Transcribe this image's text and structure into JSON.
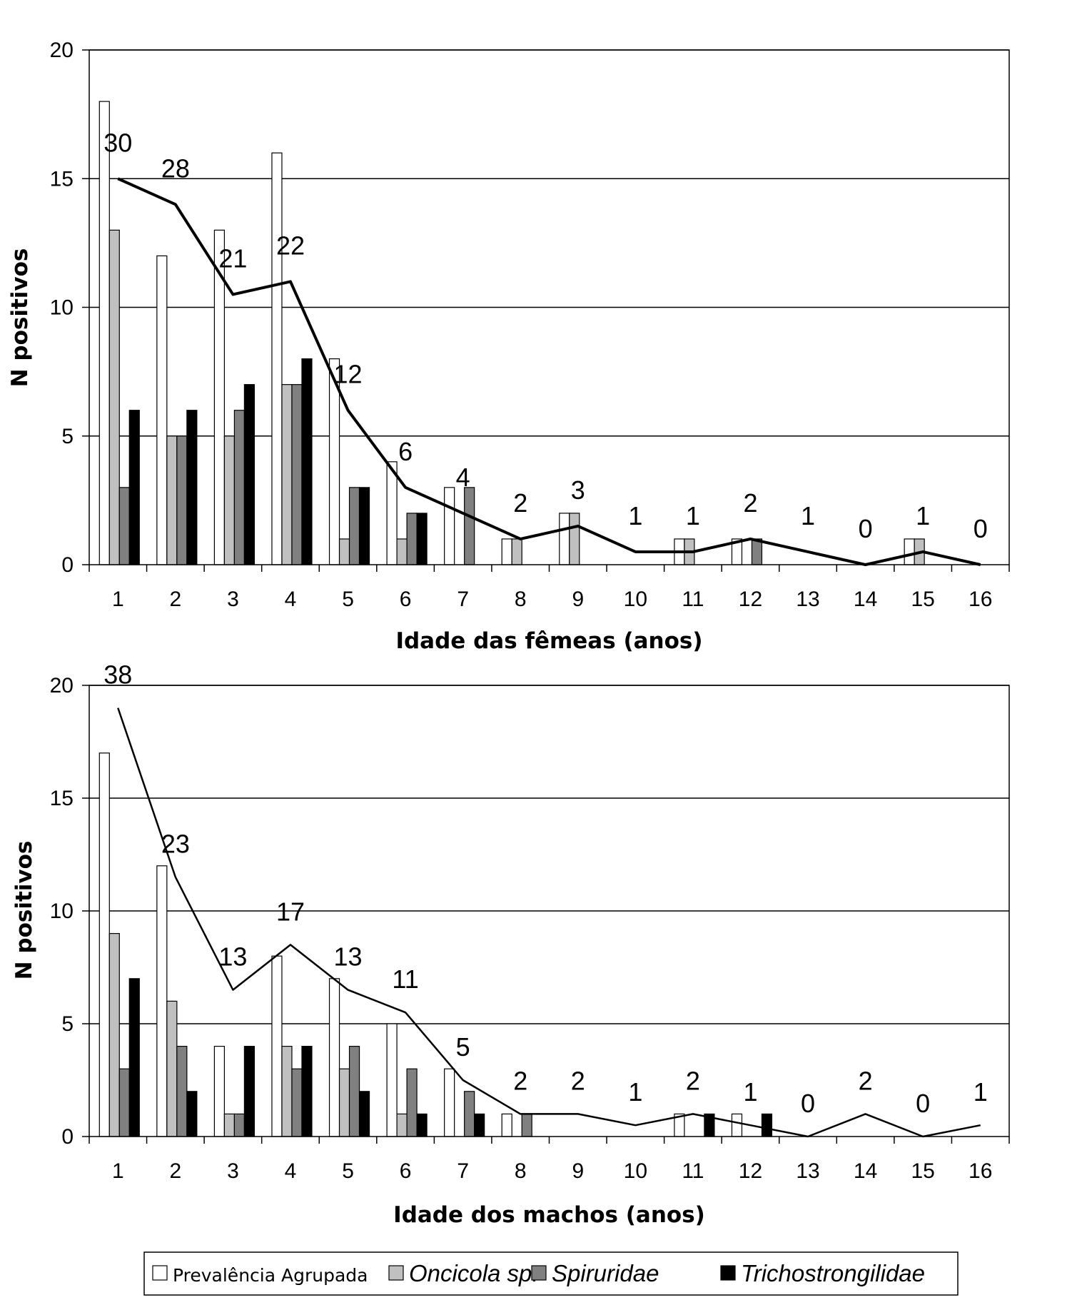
{
  "legend": {
    "items": [
      {
        "name": "Prevalência Agrupada",
        "color": "#ffffff",
        "italic": false
      },
      {
        "name": "Oncicola sp.",
        "color": "#c0c0c0",
        "italic": true
      },
      {
        "name": "Spiruridae",
        "color": "#808080",
        "italic": true
      },
      {
        "name": "Trichostrongilidae",
        "color": "#000000",
        "italic": true
      }
    ]
  },
  "chart_data": [
    {
      "type": "bar",
      "xlabel": "Idade das fêmeas (anos)",
      "ylabel": "N positivos",
      "ylim": [
        0,
        20
      ],
      "yticks": [
        0,
        5,
        10,
        15,
        20
      ],
      "grid": true,
      "categories": [
        "1",
        "2",
        "3",
        "4",
        "5",
        "6",
        "7",
        "8",
        "9",
        "10",
        "11",
        "12",
        "13",
        "14",
        "15",
        "16"
      ],
      "series": [
        {
          "name": "Prevalência Agrupada",
          "color": "#ffffff",
          "values": [
            18,
            12,
            13,
            16,
            8,
            4,
            3,
            1,
            2,
            0,
            1,
            1,
            0,
            0,
            1,
            0
          ]
        },
        {
          "name": "Oncicola sp.",
          "color": "#c0c0c0",
          "values": [
            13,
            5,
            5,
            7,
            1,
            1,
            0,
            1,
            2,
            0,
            1,
            0,
            0,
            0,
            1,
            0
          ]
        },
        {
          "name": "Spiruridae",
          "color": "#808080",
          "values": [
            3,
            5,
            6,
            7,
            3,
            2,
            3,
            0,
            0,
            0,
            0,
            1,
            0,
            0,
            0,
            0
          ]
        },
        {
          "name": "Trichostrongilidae",
          "color": "#000000",
          "values": [
            6,
            6,
            7,
            8,
            3,
            2,
            0,
            0,
            0,
            0,
            0,
            0,
            0,
            0,
            0,
            0
          ]
        }
      ],
      "line": {
        "values": [
          15,
          14,
          10.5,
          11,
          6,
          3,
          2,
          1,
          1.5,
          0.5,
          0.5,
          1,
          0.5,
          0,
          0.5,
          0
        ],
        "labels": [
          "30",
          "28",
          "21",
          "22",
          "12",
          "6",
          "4",
          "2",
          "3",
          "1",
          "1",
          "2",
          "1",
          "0",
          "1",
          "0"
        ]
      }
    },
    {
      "type": "bar",
      "xlabel": "Idade dos machos (anos)",
      "ylabel": "N positivos",
      "ylim": [
        0,
        20
      ],
      "yticks": [
        0,
        5,
        10,
        15,
        20
      ],
      "grid": true,
      "categories": [
        "1",
        "2",
        "3",
        "4",
        "5",
        "6",
        "7",
        "8",
        "9",
        "10",
        "11",
        "12",
        "13",
        "14",
        "15",
        "16"
      ],
      "series": [
        {
          "name": "Prevalência Agrupada",
          "color": "#ffffff",
          "values": [
            17,
            12,
            4,
            8,
            7,
            5,
            3,
            1,
            0,
            0,
            1,
            1,
            0,
            0,
            0,
            0
          ]
        },
        {
          "name": "Oncicola sp.",
          "color": "#c0c0c0",
          "values": [
            9,
            6,
            1,
            4,
            3,
            1,
            0,
            0,
            0,
            0,
            0,
            0,
            0,
            0,
            0,
            0
          ]
        },
        {
          "name": "Spiruridae",
          "color": "#808080",
          "values": [
            3,
            4,
            1,
            3,
            4,
            3,
            2,
            1,
            0,
            0,
            0,
            0,
            0,
            0,
            0,
            0
          ]
        },
        {
          "name": "Trichostrongilidae",
          "color": "#000000",
          "values": [
            7,
            2,
            4,
            4,
            2,
            1,
            1,
            0,
            0,
            0,
            1,
            1,
            0,
            0,
            0,
            0
          ]
        }
      ],
      "line": {
        "values": [
          19,
          11.5,
          6.5,
          8.5,
          6.5,
          5.5,
          2.5,
          1,
          1,
          0.5,
          1,
          0.5,
          0,
          1,
          0,
          0.5
        ],
        "labels": [
          "38",
          "23",
          "13",
          "17",
          "13",
          "11",
          "5",
          "2",
          "2",
          "1",
          "2",
          "1",
          "0",
          "2",
          "0",
          "1"
        ]
      }
    }
  ]
}
